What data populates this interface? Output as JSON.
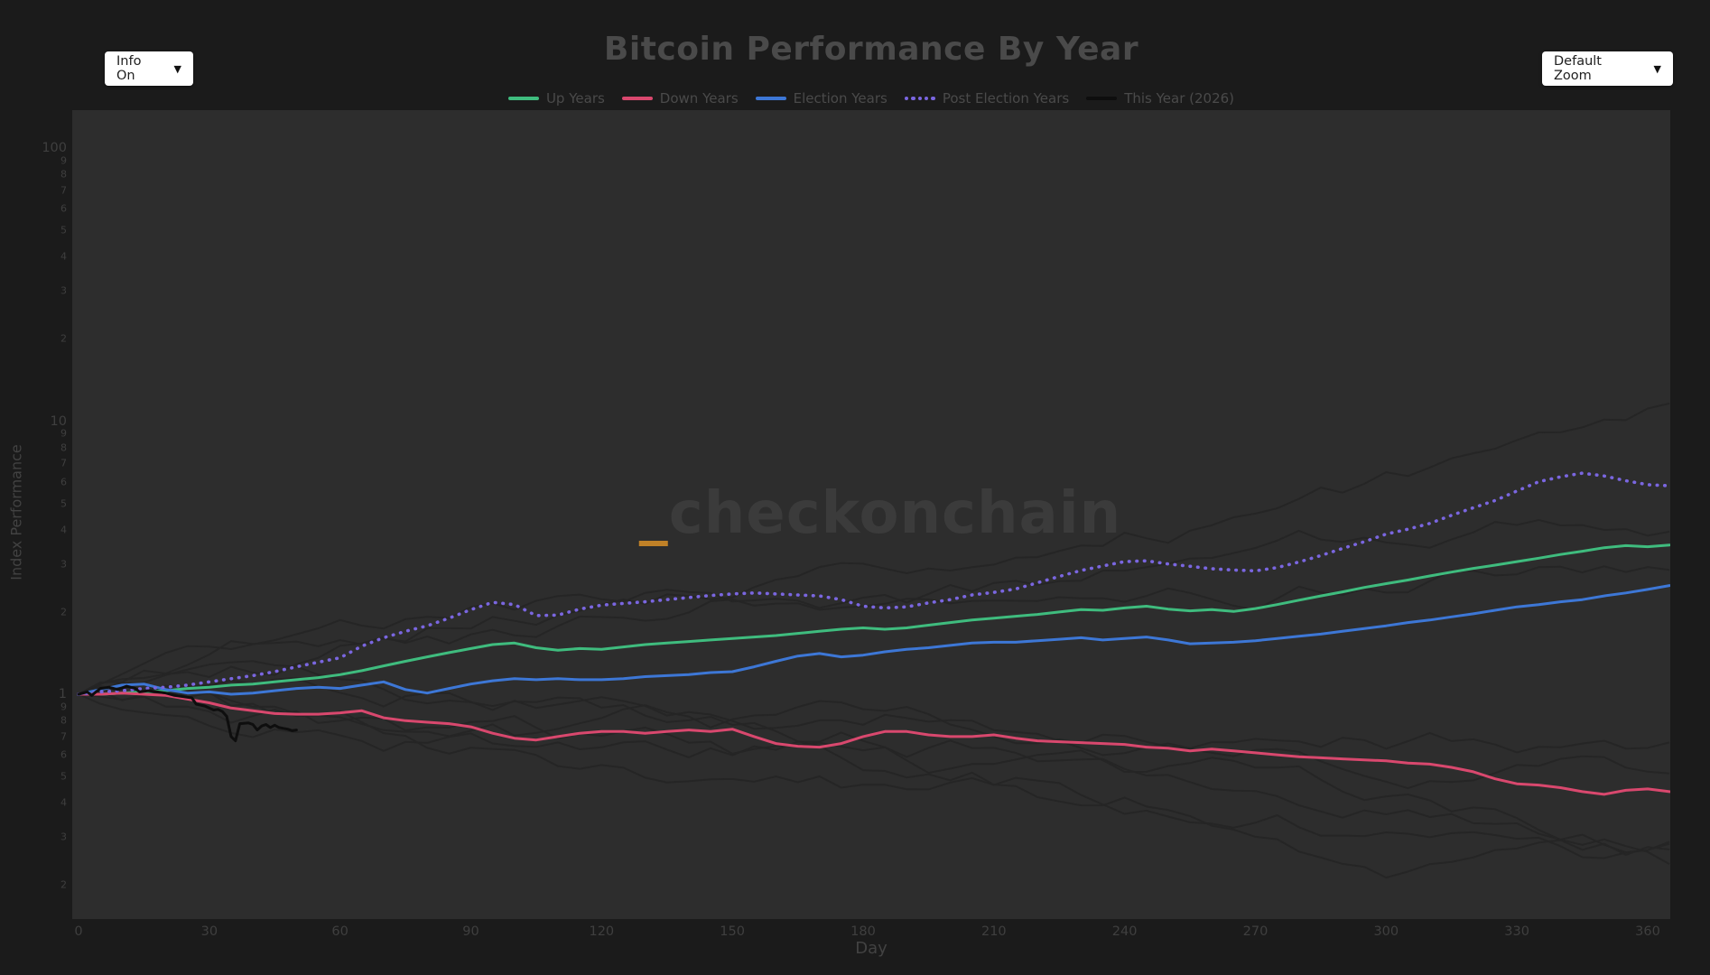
{
  "page": {
    "title": "Bitcoin Performance By Year"
  },
  "controls": {
    "info_dropdown": {
      "label": "Info On",
      "arrow": "▼"
    },
    "zoom_dropdown": {
      "label": "Default Zoom",
      "arrow": "▼"
    }
  },
  "watermark": {
    "underscore": "_",
    "text": "checkonchain"
  },
  "chart_data": {
    "type": "line",
    "title": "Bitcoin Performance By Year",
    "xlabel": "Day",
    "ylabel": "Index Performance",
    "x_axis": {
      "min": -1.5,
      "max": 365.5,
      "ticks": [
        0,
        30,
        60,
        90,
        120,
        150,
        180,
        210,
        240,
        270,
        300,
        330,
        360
      ]
    },
    "y_axis": {
      "scale": "log",
      "min": 0.15,
      "max": 140,
      "major_ticks": [
        100,
        10,
        1
      ],
      "minor_tick_digits": [
        9,
        8,
        7,
        6,
        5,
        4,
        3,
        2
      ]
    },
    "grid": "off",
    "legend_position": "top-center",
    "colors": {
      "up": "#3fbc7e",
      "down": "#d9486e",
      "election": "#3d77d6",
      "post_election": "#7a66e0",
      "this_year": "#0e0e0e"
    },
    "series": [
      {
        "name": "Up Years",
        "color_key": "up",
        "style": "solid",
        "x_start": 0,
        "x_step": 5,
        "values": [
          1.0,
          1.0,
          1.01,
          1.02,
          1.03,
          1.05,
          1.06,
          1.08,
          1.09,
          1.11,
          1.13,
          1.15,
          1.18,
          1.22,
          1.27,
          1.32,
          1.37,
          1.42,
          1.47,
          1.52,
          1.54,
          1.48,
          1.45,
          1.47,
          1.46,
          1.49,
          1.52,
          1.54,
          1.56,
          1.58,
          1.6,
          1.62,
          1.64,
          1.67,
          1.7,
          1.73,
          1.75,
          1.73,
          1.75,
          1.79,
          1.83,
          1.87,
          1.9,
          1.93,
          1.96,
          2.0,
          2.04,
          2.03,
          2.07,
          2.1,
          2.05,
          2.02,
          2.04,
          2.01,
          2.06,
          2.13,
          2.21,
          2.29,
          2.37,
          2.46,
          2.54,
          2.62,
          2.71,
          2.8,
          2.89,
          2.97,
          3.06,
          3.15,
          3.25,
          3.34,
          3.44,
          3.5,
          3.47,
          3.52
        ]
      },
      {
        "name": "Down Years",
        "color_key": "down",
        "style": "solid",
        "x_start": 0,
        "x_step": 5,
        "values": [
          1.0,
          1.0,
          1.01,
          1.0,
          0.99,
          0.96,
          0.93,
          0.89,
          0.87,
          0.85,
          0.845,
          0.845,
          0.855,
          0.87,
          0.82,
          0.8,
          0.79,
          0.78,
          0.76,
          0.72,
          0.69,
          0.68,
          0.7,
          0.72,
          0.73,
          0.73,
          0.72,
          0.73,
          0.74,
          0.73,
          0.745,
          0.7,
          0.66,
          0.645,
          0.64,
          0.66,
          0.7,
          0.73,
          0.73,
          0.71,
          0.7,
          0.7,
          0.71,
          0.69,
          0.675,
          0.67,
          0.665,
          0.66,
          0.655,
          0.64,
          0.635,
          0.62,
          0.63,
          0.62,
          0.61,
          0.6,
          0.59,
          0.585,
          0.58,
          0.575,
          0.57,
          0.56,
          0.555,
          0.54,
          0.52,
          0.49,
          0.47,
          0.465,
          0.455,
          0.44,
          0.43,
          0.445,
          0.45,
          0.44
        ]
      },
      {
        "name": "Election Years",
        "color_key": "election",
        "style": "solid",
        "x_start": 0,
        "x_step": 5,
        "values": [
          1.0,
          1.04,
          1.08,
          1.09,
          1.04,
          1.01,
          1.02,
          1.0,
          1.01,
          1.03,
          1.05,
          1.06,
          1.05,
          1.08,
          1.11,
          1.04,
          1.01,
          1.05,
          1.09,
          1.12,
          1.14,
          1.13,
          1.14,
          1.13,
          1.13,
          1.14,
          1.16,
          1.17,
          1.18,
          1.2,
          1.21,
          1.26,
          1.32,
          1.38,
          1.41,
          1.37,
          1.39,
          1.43,
          1.46,
          1.48,
          1.51,
          1.54,
          1.55,
          1.55,
          1.57,
          1.59,
          1.61,
          1.58,
          1.6,
          1.62,
          1.58,
          1.53,
          1.54,
          1.55,
          1.57,
          1.6,
          1.63,
          1.66,
          1.7,
          1.74,
          1.78,
          1.83,
          1.87,
          1.92,
          1.97,
          2.03,
          2.09,
          2.13,
          2.18,
          2.22,
          2.29,
          2.35,
          2.42,
          2.5
        ]
      },
      {
        "name": "Post Election Years",
        "color_key": "post_election",
        "style": "dotted",
        "x_start": 0,
        "x_step": 5,
        "values": [
          1.0,
          1.02,
          1.03,
          1.05,
          1.06,
          1.08,
          1.11,
          1.14,
          1.17,
          1.21,
          1.26,
          1.31,
          1.36,
          1.5,
          1.61,
          1.7,
          1.78,
          1.9,
          2.04,
          2.17,
          2.13,
          1.94,
          1.95,
          2.05,
          2.12,
          2.15,
          2.18,
          2.22,
          2.26,
          2.3,
          2.33,
          2.35,
          2.33,
          2.31,
          2.29,
          2.22,
          2.1,
          2.07,
          2.09,
          2.16,
          2.22,
          2.31,
          2.36,
          2.43,
          2.56,
          2.7,
          2.84,
          2.95,
          3.06,
          3.08,
          3.0,
          2.94,
          2.88,
          2.85,
          2.83,
          2.91,
          3.05,
          3.22,
          3.42,
          3.62,
          3.86,
          4.02,
          4.22,
          4.52,
          4.82,
          5.12,
          5.55,
          6.0,
          6.25,
          6.45,
          6.3,
          6.05,
          5.85,
          5.8
        ]
      },
      {
        "name": "This Year (2026)",
        "color_key": "this_year",
        "style": "solid",
        "points": [
          [
            0,
            1.0
          ],
          [
            2,
            1.02
          ],
          [
            3,
            0.99
          ],
          [
            5,
            1.05
          ],
          [
            7,
            1.06
          ],
          [
            9,
            1.04
          ],
          [
            11,
            1.07
          ],
          [
            13,
            1.05
          ],
          [
            14,
            1.02
          ],
          [
            16,
            1.03
          ],
          [
            18,
            1.02
          ],
          [
            20,
            1.01
          ],
          [
            22,
            0.99
          ],
          [
            24,
            0.98
          ],
          [
            26,
            0.97
          ],
          [
            27,
            0.92
          ],
          [
            29,
            0.905
          ],
          [
            31,
            0.875
          ],
          [
            32,
            0.88
          ],
          [
            33,
            0.865
          ],
          [
            34,
            0.83
          ],
          [
            35,
            0.7
          ],
          [
            36,
            0.675
          ],
          [
            37,
            0.78
          ],
          [
            39,
            0.785
          ],
          [
            40,
            0.775
          ],
          [
            41,
            0.74
          ],
          [
            42,
            0.765
          ],
          [
            43,
            0.775
          ],
          [
            44,
            0.755
          ],
          [
            45,
            0.77
          ],
          [
            46,
            0.755
          ],
          [
            47,
            0.75
          ],
          [
            48,
            0.745
          ],
          [
            49,
            0.735
          ],
          [
            50,
            0.74
          ]
        ]
      }
    ]
  }
}
